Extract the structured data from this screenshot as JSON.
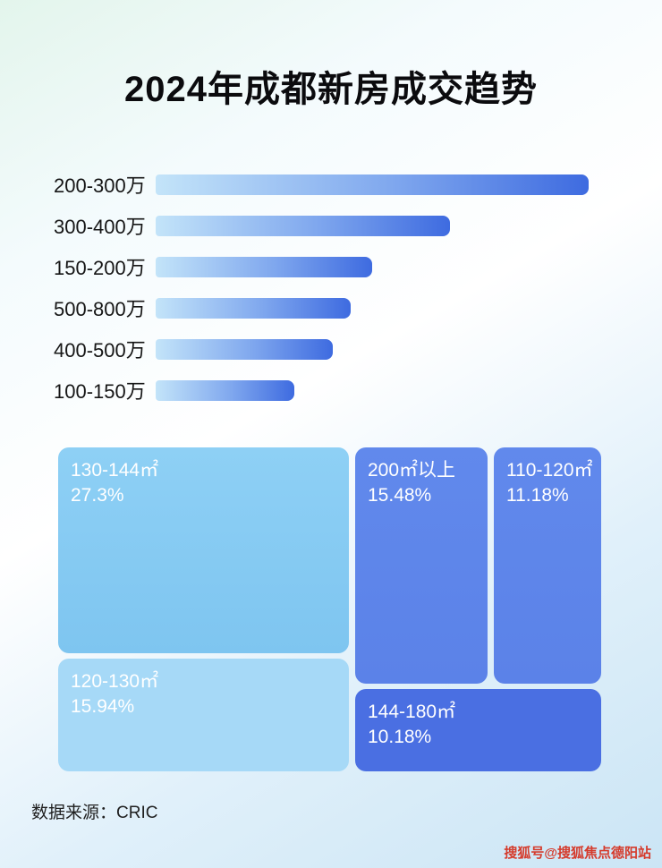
{
  "page": {
    "title": "2024年成都新房成交趋势",
    "source": "数据来源：CRIC",
    "watermark": "搜狐号@搜狐焦点德阳站"
  },
  "colors": {
    "bar_gradient_start": "#c3e4f9",
    "bar_gradient_end": "#3e6be0",
    "treemap_light_blue_1": "#86ccf3",
    "treemap_light_blue_2": "#a6d9f7",
    "treemap_mid_blue": "#5d85e9",
    "treemap_dark_blue": "#4a6fe2",
    "watermark_red": "#d53b2c"
  },
  "chart_data": [
    {
      "type": "bar",
      "orientation": "horizontal",
      "categories": [
        "200-300万",
        "300-400万",
        "150-200万",
        "500-800万",
        "400-500万",
        "100-150万"
      ],
      "values": [
        100,
        68,
        50,
        45,
        41,
        32
      ],
      "value_note": "relative bar lengths as % of longest bar; no numeric axis or data labels shown in image",
      "grid": false,
      "legend": false
    },
    {
      "type": "treemap",
      "items": [
        {
          "label": "130-144㎡",
          "value": 27.3,
          "percent_text": "27.3%"
        },
        {
          "label": "120-130㎡",
          "value": 15.94,
          "percent_text": "15.94%"
        },
        {
          "label": "200㎡以上",
          "value": 15.48,
          "percent_text": "15.48%"
        },
        {
          "label": "110-120㎡",
          "value": 11.18,
          "percent_text": "11.18%"
        },
        {
          "label": "144-180㎡",
          "value": 10.18,
          "percent_text": "10.18%"
        }
      ]
    }
  ]
}
